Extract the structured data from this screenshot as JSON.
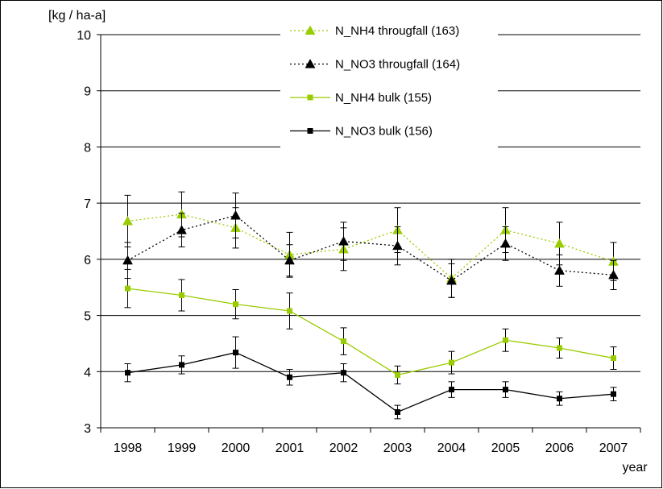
{
  "chart_data": {
    "type": "line",
    "title": "",
    "ylabel": "[kg / ha-a]",
    "xlabel": "year",
    "x": [
      "1998",
      "1999",
      "2000",
      "2001",
      "2002",
      "2003",
      "2004",
      "2005",
      "2006",
      "2007"
    ],
    "ylim": [
      3,
      10
    ],
    "yticks": [
      3,
      4,
      5,
      6,
      7,
      8,
      9,
      10
    ],
    "grid": "horizontal",
    "legend_position": "top-right",
    "series": [
      {
        "name": "N_NH4 througfall (163)",
        "color": "#99cc00",
        "line_style": "dotted",
        "marker": "triangle",
        "values": [
          6.68,
          6.8,
          6.56,
          6.08,
          6.18,
          6.52,
          5.66,
          6.52,
          6.28,
          5.96
        ],
        "error": [
          0.46,
          0.4,
          0.36,
          0.4,
          0.38,
          0.4,
          0.34,
          0.4,
          0.38,
          0.34
        ]
      },
      {
        "name": "N_NO3 througfall (164)",
        "color": "#000000",
        "line_style": "dotted",
        "marker": "triangle",
        "values": [
          5.98,
          6.52,
          6.78,
          5.98,
          6.32,
          6.24,
          5.62,
          6.28,
          5.8,
          5.72
        ],
        "error": [
          0.32,
          0.3,
          0.4,
          0.28,
          0.34,
          0.34,
          0.3,
          0.3,
          0.28,
          0.26
        ]
      },
      {
        "name": "N_NH4 bulk (155)",
        "color": "#99cc00",
        "line_style": "solid",
        "marker": "square",
        "values": [
          5.48,
          5.36,
          5.2,
          5.08,
          4.54,
          3.94,
          4.16,
          4.56,
          4.42,
          4.24
        ],
        "error": [
          0.34,
          0.28,
          0.26,
          0.32,
          0.24,
          0.16,
          0.2,
          0.2,
          0.18,
          0.2
        ]
      },
      {
        "name": "N_NO3 bulk (156)",
        "color": "#000000",
        "line_style": "solid",
        "marker": "square",
        "values": [
          3.98,
          4.12,
          4.34,
          3.9,
          3.98,
          3.28,
          3.68,
          3.68,
          3.52,
          3.6
        ],
        "error": [
          0.16,
          0.16,
          0.28,
          0.14,
          0.16,
          0.12,
          0.14,
          0.14,
          0.12,
          0.12
        ]
      }
    ]
  }
}
